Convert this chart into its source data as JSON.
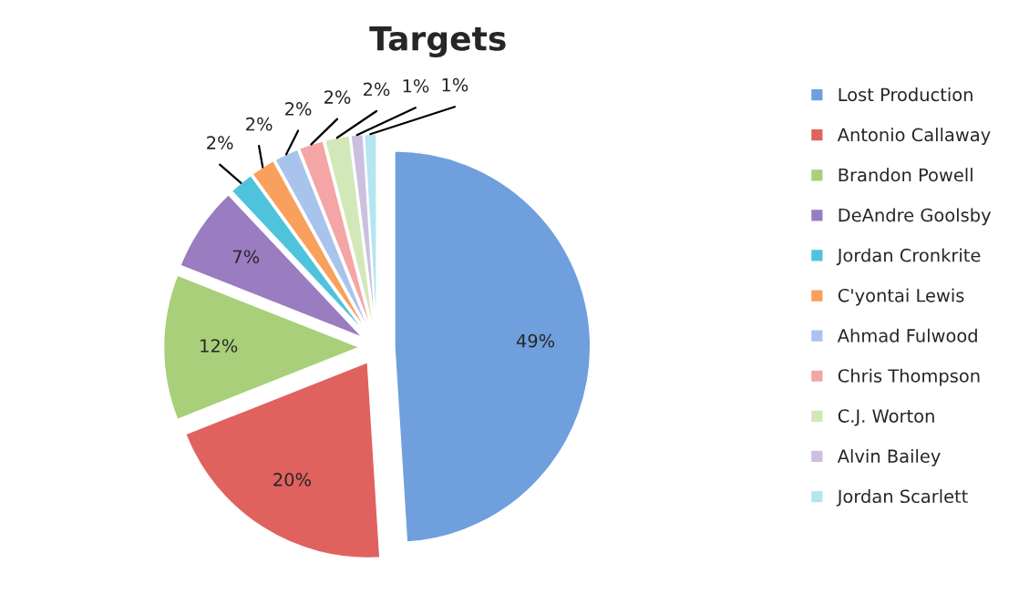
{
  "chart_data": {
    "type": "pie",
    "title": "Targets",
    "categories": [
      "Lost Production",
      "Antonio Callaway",
      "Brandon Powell",
      "DeAndre Goolsby",
      "Jordan Cronkrite",
      "C'yontai Lewis",
      "Ahmad Fulwood",
      "Chris Thompson",
      "C.J. Worton",
      "Alvin Bailey",
      "Jordan Scarlett"
    ],
    "values": [
      49,
      20,
      12,
      7,
      2,
      2,
      2,
      2,
      2,
      1,
      1
    ],
    "colors": [
      "#6f9fdc",
      "#e0625f",
      "#a9cf7a",
      "#9a7cc0",
      "#4fc3dc",
      "#f8a05c",
      "#a9c4ec",
      "#f4a5a5",
      "#d3e8b9",
      "#cdbfe0",
      "#b3e6f0"
    ],
    "value_labels": [
      "49%",
      "20%",
      "12%",
      "7%",
      "2%",
      "2%",
      "2%",
      "2%",
      "2%",
      "1%",
      "1%"
    ],
    "legend": "right"
  }
}
